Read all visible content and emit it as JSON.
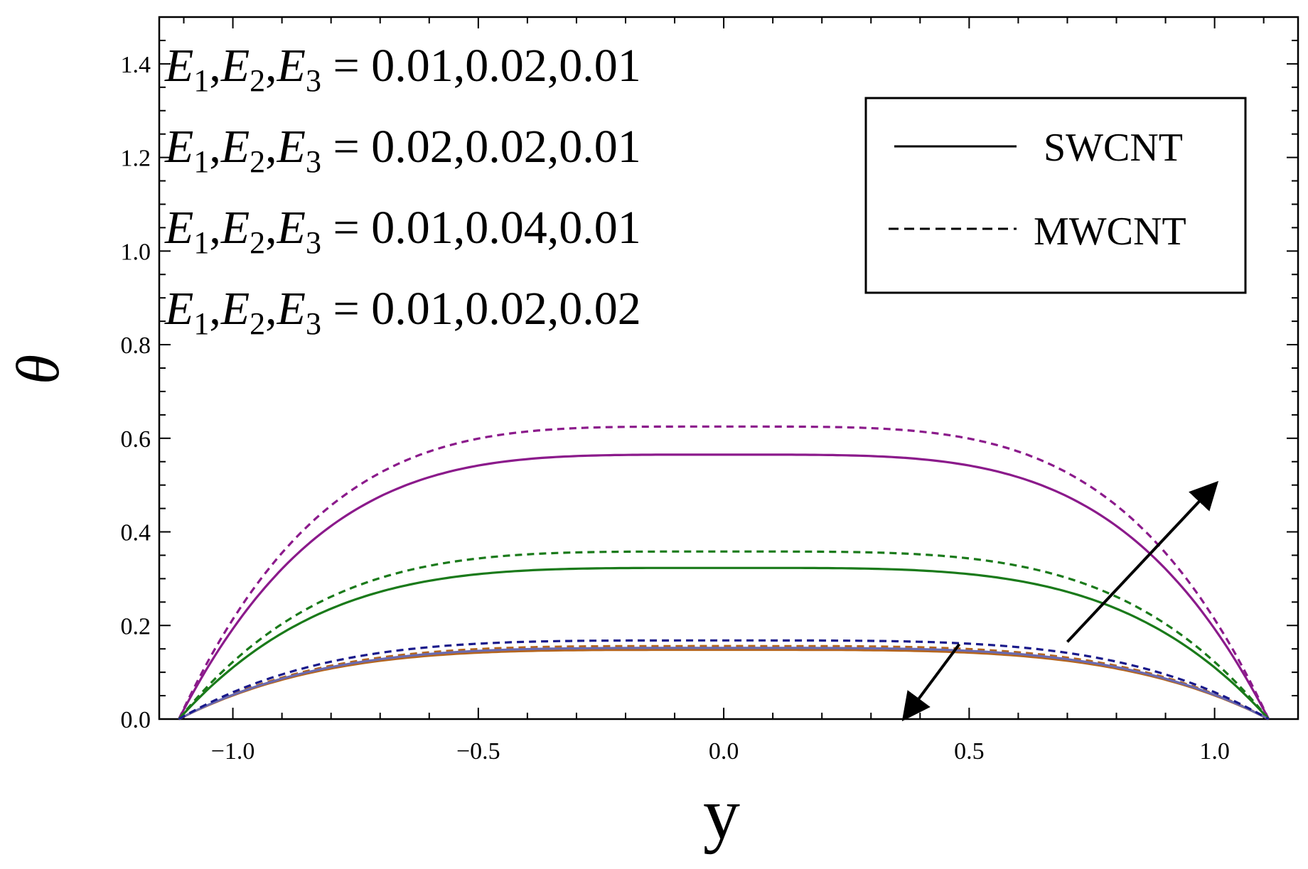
{
  "chart_data": {
    "type": "line",
    "title": "",
    "xlabel": "y",
    "ylabel": "θ",
    "xlim": [
      -1.15,
      1.17
    ],
    "ylim": [
      0,
      1.5
    ],
    "x_ticks": [
      -1.0,
      -0.5,
      0.0,
      0.5,
      1.0
    ],
    "x_tick_labels": [
      "−1.0",
      "−0.5",
      "0.0",
      "0.5",
      "1.0"
    ],
    "y_ticks": [
      0.0,
      0.2,
      0.4,
      0.6,
      0.8,
      1.0,
      1.2,
      1.4
    ],
    "y_tick_labels": [
      "0.0",
      "0.2",
      "0.4",
      "0.6",
      "0.8",
      "1.0",
      "1.2",
      "1.4"
    ],
    "grid": false,
    "legend_position": "top-right",
    "legend": [
      {
        "label": "SWCNT",
        "style": "solid"
      },
      {
        "label": "MWCNT",
        "style": "dashed"
      }
    ],
    "annotations": [
      {
        "E1": "E",
        "sub1": "1",
        "E2": "E",
        "sub2": "2",
        "E3": "E",
        "sub3": "3",
        "values": "= 0.01,0.02,0.01"
      },
      {
        "E1": "E",
        "sub1": "1",
        "E2": "E",
        "sub2": "2",
        "E3": "E",
        "sub3": "3",
        "values": "= 0.02,0.02,0.01"
      },
      {
        "E1": "E",
        "sub1": "1",
        "E2": "E",
        "sub2": "2",
        "E3": "E",
        "sub3": "3",
        "values": "= 0.01,0.04,0.01"
      },
      {
        "E1": "E",
        "sub1": "1",
        "E2": "E",
        "sub2": "2",
        "E3": "E",
        "sub3": "3",
        "values": "= 0.01,0.02,0.02"
      }
    ],
    "x_domain": [
      -1.11,
      1.11
    ],
    "series_shape_exponent": 4,
    "series": [
      {
        "color": "#8b1a8b",
        "style": "solid",
        "peak": 0.565
      },
      {
        "color": "#8b1a8b",
        "style": "dashed",
        "peak": 0.625
      },
      {
        "color": "#1a7a1a",
        "style": "solid",
        "peak": 0.323
      },
      {
        "color": "#1a7a1a",
        "style": "dashed",
        "peak": 0.358
      },
      {
        "color": "#b5651d",
        "style": "solid",
        "peak": 0.148
      },
      {
        "color": "#b5651d",
        "style": "dashed",
        "peak": 0.156
      },
      {
        "color": "#6a6ab0",
        "style": "solid",
        "peak": 0.152
      },
      {
        "color": "#1a1a8b",
        "style": "dashed",
        "peak": 0.168
      }
    ],
    "arrows": [
      {
        "from": [
          0.7,
          0.165
        ],
        "to": [
          1.0,
          0.5
        ]
      },
      {
        "from": [
          0.48,
          0.16
        ],
        "to": [
          0.37,
          0.005
        ]
      }
    ]
  }
}
